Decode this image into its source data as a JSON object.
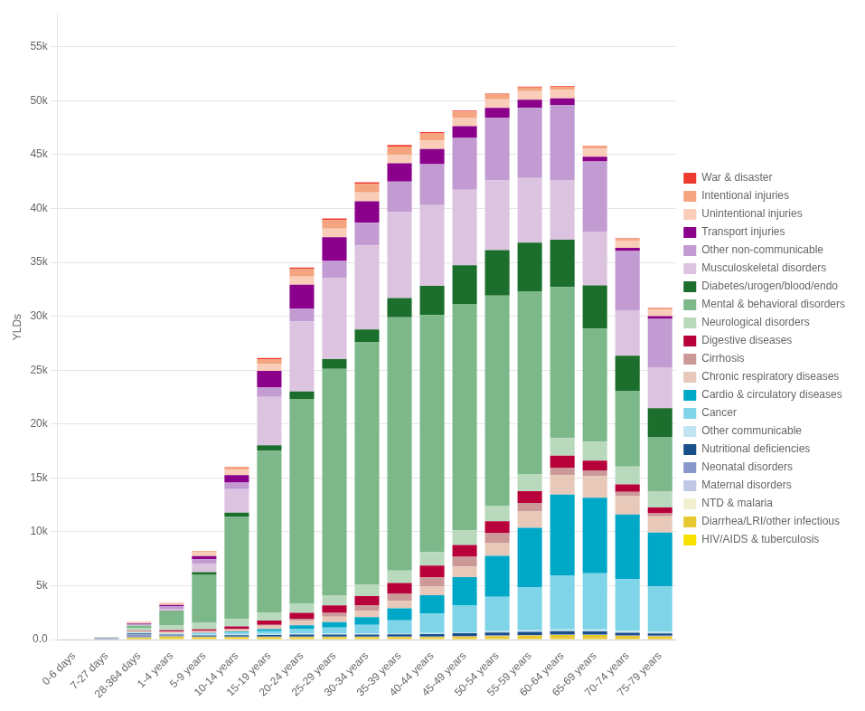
{
  "chart_data": {
    "type": "bar",
    "stacked": true,
    "ylabel": "YLDs",
    "categories": [
      "0-6 days",
      "7-27 days",
      "28-364 days",
      "1-4 years",
      "5-9 years",
      "10-14 years",
      "15-19 years",
      "20-24 years",
      "25-29 years",
      "30-34 years",
      "35-39 years",
      "40-44 years",
      "45-49 years",
      "50-54 years",
      "55-59 years",
      "60-64 years",
      "65-69 years",
      "70-74 years",
      "75-79 years"
    ],
    "series": [
      {
        "name": "HIV/AIDS & tuberculosis",
        "color": "#f8e000",
        "values": [
          0,
          0,
          50,
          80,
          80,
          80,
          80,
          80,
          80,
          80,
          80,
          80,
          80,
          80,
          80,
          80,
          80,
          60,
          60
        ]
      },
      {
        "name": "Diarrhea/LRI/other infectious",
        "color": "#e8c830",
        "values": [
          0,
          0,
          150,
          200,
          150,
          150,
          150,
          150,
          150,
          150,
          150,
          150,
          200,
          250,
          300,
          350,
          350,
          280,
          250
        ]
      },
      {
        "name": "NTD & malaria",
        "color": "#f0f0d0",
        "values": [
          0,
          0,
          0,
          0,
          0,
          0,
          0,
          0,
          0,
          0,
          0,
          0,
          0,
          0,
          0,
          0,
          0,
          0,
          0
        ]
      },
      {
        "name": "Maternal disorders",
        "color": "#c0c8e8",
        "values": [
          0,
          0,
          0,
          0,
          0,
          0,
          0,
          0,
          0,
          0,
          0,
          0,
          0,
          0,
          0,
          0,
          0,
          0,
          0
        ]
      },
      {
        "name": "Neonatal disorders",
        "color": "#8898c8",
        "values": [
          0,
          150,
          300,
          100,
          50,
          50,
          50,
          50,
          50,
          50,
          50,
          50,
          50,
          50,
          50,
          50,
          50,
          50,
          50
        ]
      },
      {
        "name": "Nutritional deficiencies",
        "color": "#1a4f8a",
        "values": [
          0,
          0,
          80,
          100,
          100,
          120,
          150,
          200,
          200,
          200,
          220,
          240,
          260,
          280,
          300,
          300,
          280,
          250,
          220
        ]
      },
      {
        "name": "Other communicable",
        "color": "#c0e4f0",
        "values": [
          0,
          0,
          100,
          100,
          100,
          100,
          100,
          100,
          100,
          100,
          100,
          100,
          100,
          120,
          150,
          180,
          200,
          180,
          160
        ]
      },
      {
        "name": "Cancer",
        "color": "#80d4e8",
        "values": [
          0,
          0,
          0,
          0,
          80,
          150,
          250,
          400,
          550,
          800,
          1200,
          1800,
          2500,
          3200,
          4000,
          5000,
          5200,
          4800,
          4200
        ]
      },
      {
        "name": "Cardio & circulatory diseases",
        "color": "#00a8c8",
        "values": [
          0,
          0,
          0,
          0,
          50,
          100,
          200,
          350,
          500,
          700,
          1100,
          1700,
          2600,
          3800,
          5500,
          7500,
          7000,
          6000,
          5000
        ]
      },
      {
        "name": "Chronic respiratory diseases",
        "color": "#e8c8b8",
        "values": [
          0,
          0,
          100,
          180,
          200,
          220,
          300,
          400,
          500,
          600,
          700,
          850,
          1000,
          1200,
          1500,
          1800,
          2000,
          1700,
          1500
        ]
      },
      {
        "name": "Cirrhosis",
        "color": "#cc9999",
        "values": [
          0,
          0,
          0,
          0,
          0,
          0,
          100,
          200,
          350,
          500,
          650,
          800,
          900,
          900,
          800,
          700,
          550,
          380,
          280
        ]
      },
      {
        "name": "Digestive diseases",
        "color": "#b8003b",
        "values": [
          0,
          0,
          50,
          100,
          150,
          250,
          400,
          550,
          700,
          850,
          1000,
          1100,
          1100,
          1100,
          1100,
          1100,
          900,
          700,
          550
        ]
      },
      {
        "name": "Neurological disorders",
        "color": "#b8d9bc",
        "values": [
          80,
          100,
          280,
          500,
          600,
          700,
          750,
          850,
          950,
          1050,
          1150,
          1250,
          1350,
          1450,
          1550,
          1650,
          1750,
          1650,
          1500
        ]
      },
      {
        "name": "Mental & behavioral disorders",
        "color": "#7db88a",
        "values": [
          0,
          0,
          200,
          1200,
          4500,
          9500,
          15000,
          19000,
          21000,
          22500,
          23500,
          22000,
          21000,
          19500,
          17000,
          14000,
          10500,
          7000,
          5000
        ]
      },
      {
        "name": "Diabetes/urogen/blood/endo",
        "color": "#1b6e2b",
        "values": [
          0,
          0,
          0,
          100,
          200,
          350,
          500,
          700,
          900,
          1200,
          1800,
          2700,
          3600,
          4200,
          4500,
          4400,
          4000,
          3300,
          2700
        ]
      },
      {
        "name": "Musculoskeletal disorders",
        "color": "#dcc4e0",
        "values": [
          0,
          0,
          50,
          200,
          800,
          2200,
          4500,
          6500,
          7500,
          7800,
          8000,
          7500,
          7000,
          6500,
          6000,
          5500,
          5000,
          4200,
          3800
        ]
      },
      {
        "name": "Other non-communicable",
        "color": "#c39bd3",
        "values": [
          0,
          0,
          100,
          250,
          400,
          600,
          900,
          1200,
          1600,
          2100,
          2800,
          3800,
          4800,
          5800,
          6500,
          7000,
          6500,
          5500,
          4500
        ]
      },
      {
        "name": "Transport injuries",
        "color": "#8b008b",
        "values": [
          0,
          0,
          50,
          100,
          300,
          700,
          1500,
          2200,
          2200,
          2000,
          1700,
          1400,
          1100,
          900,
          750,
          600,
          450,
          300,
          250
        ]
      },
      {
        "name": "Unintentional injuries",
        "color": "#f9cdb8",
        "values": [
          0,
          0,
          100,
          200,
          350,
          500,
          650,
          750,
          800,
          800,
          800,
          800,
          800,
          800,
          800,
          800,
          750,
          650,
          600
        ]
      },
      {
        "name": "Intentional injuries",
        "color": "#f4a47e",
        "values": [
          0,
          0,
          30,
          50,
          100,
          200,
          450,
          700,
          800,
          800,
          750,
          650,
          550,
          450,
          350,
          280,
          230,
          170,
          140
        ]
      },
      {
        "name": "War & disaster",
        "color": "#ee3b2f",
        "values": [
          0,
          0,
          0,
          0,
          30,
          50,
          100,
          150,
          150,
          150,
          150,
          130,
          100,
          80,
          70,
          60,
          50,
          50,
          50
        ]
      }
    ],
    "ylim": [
      0,
      58000
    ],
    "yticks": [
      {
        "value": 0,
        "label": "0.0"
      },
      {
        "value": 5000,
        "label": "5k"
      },
      {
        "value": 10000,
        "label": "10k"
      },
      {
        "value": 15000,
        "label": "15k"
      },
      {
        "value": 20000,
        "label": "20k"
      },
      {
        "value": 25000,
        "label": "25k"
      },
      {
        "value": 30000,
        "label": "30k"
      },
      {
        "value": 35000,
        "label": "35k"
      },
      {
        "value": 40000,
        "label": "40k"
      },
      {
        "value": 45000,
        "label": "45k"
      },
      {
        "value": 50000,
        "label": "50k"
      },
      {
        "value": 55000,
        "label": "55k"
      }
    ],
    "grid": true,
    "legend": "right"
  }
}
